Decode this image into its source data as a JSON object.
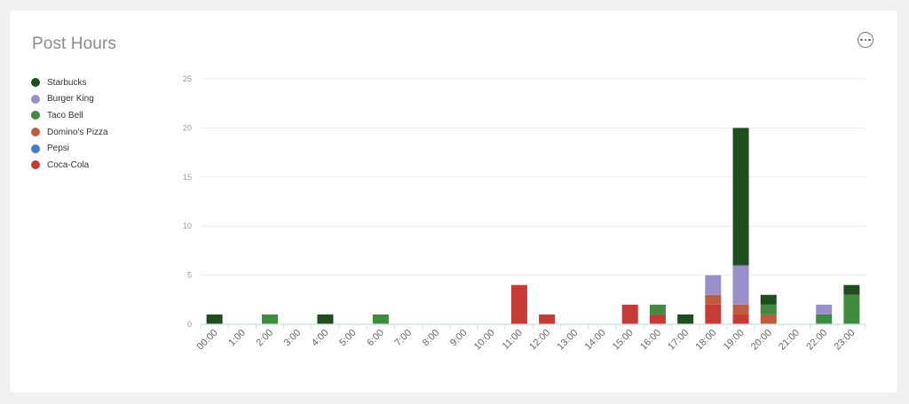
{
  "card": {
    "title": "Post Hours",
    "more_icon": "more-horizontal-circle-icon"
  },
  "chart_data": {
    "type": "bar",
    "stacked": true,
    "title": "Post Hours",
    "xlabel": "",
    "ylabel": "",
    "ylim": [
      0,
      25
    ],
    "yticks": [
      0,
      5,
      10,
      15,
      20,
      25
    ],
    "grid": true,
    "legend_position": "left",
    "categories": [
      "00:00",
      "1:00",
      "2:00",
      "3:00",
      "4:00",
      "5:00",
      "6:00",
      "7:00",
      "8:00",
      "9:00",
      "10:00",
      "11:00",
      "12:00",
      "13:00",
      "14:00",
      "15:00",
      "16:00",
      "17:00",
      "18:00",
      "19:00",
      "20:00",
      "21:00",
      "22:00",
      "23:00"
    ],
    "series": [
      {
        "name": "Coca-Cola",
        "color": "#c83a35",
        "values": [
          0,
          0,
          0,
          0,
          0,
          0,
          0,
          0,
          0,
          0,
          0,
          4,
          1,
          0,
          0,
          2,
          1,
          0,
          2,
          1,
          0,
          0,
          0,
          0
        ]
      },
      {
        "name": "Pepsi",
        "color": "#3f7fd1",
        "values": [
          0,
          0,
          0,
          0,
          0,
          0,
          0,
          0,
          0,
          0,
          0,
          0,
          0,
          0,
          0,
          0,
          0,
          0,
          0,
          0,
          0,
          0,
          0,
          0
        ]
      },
      {
        "name": "Domino's Pizza",
        "color": "#bd5c3f",
        "values": [
          0,
          0,
          0,
          0,
          0,
          0,
          0,
          0,
          0,
          0,
          0,
          0,
          0,
          0,
          0,
          0,
          0,
          0,
          1,
          1,
          1,
          0,
          0,
          0
        ]
      },
      {
        "name": "Taco Bell",
        "color": "#3f8b3f",
        "values": [
          0,
          0,
          1,
          0,
          0,
          0,
          1,
          0,
          0,
          0,
          0,
          0,
          0,
          0,
          0,
          0,
          1,
          0,
          0,
          0,
          1,
          0,
          1,
          3
        ]
      },
      {
        "name": "Burger King",
        "color": "#9a8fc9",
        "values": [
          0,
          0,
          0,
          0,
          0,
          0,
          0,
          0,
          0,
          0,
          0,
          0,
          0,
          0,
          0,
          0,
          0,
          0,
          2,
          4,
          0,
          0,
          1,
          0
        ]
      },
      {
        "name": "Starbucks",
        "color": "#1f4d1f",
        "values": [
          1,
          0,
          0,
          0,
          1,
          0,
          0,
          0,
          0,
          0,
          0,
          0,
          0,
          0,
          0,
          0,
          0,
          1,
          0,
          14,
          1,
          0,
          0,
          1
        ]
      }
    ]
  },
  "legend": {
    "items": [
      {
        "name": "Starbucks",
        "color": "#1f4d1f"
      },
      {
        "name": "Burger King",
        "color": "#9a8fc9"
      },
      {
        "name": "Taco Bell",
        "color": "#3f8b3f"
      },
      {
        "name": "Domino's Pizza",
        "color": "#bd5c3f"
      },
      {
        "name": "Pepsi",
        "color": "#3f7fd1"
      },
      {
        "name": "Coca-Cola",
        "color": "#c83a35"
      }
    ]
  }
}
